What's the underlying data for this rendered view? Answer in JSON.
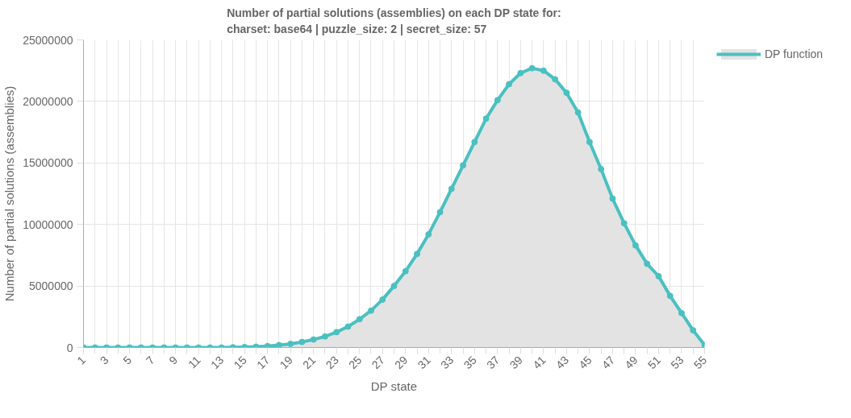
{
  "chart_data": {
    "type": "area",
    "title": "Number of partial solutions (assemblies) on each DP state for:\ncharset: base64 | puzzle_size: 2 | secret_size: 57",
    "xlabel": "DP state",
    "ylabel": "Number of partial solutions (assemblies)",
    "x": [
      1,
      2,
      3,
      4,
      5,
      6,
      7,
      8,
      9,
      10,
      11,
      12,
      13,
      14,
      15,
      16,
      17,
      18,
      19,
      20,
      21,
      22,
      23,
      24,
      25,
      26,
      27,
      28,
      29,
      30,
      31,
      32,
      33,
      34,
      35,
      36,
      37,
      38,
      39,
      40,
      41,
      42,
      43,
      44,
      45,
      46,
      47,
      48,
      49,
      50,
      51,
      52,
      53,
      54,
      55
    ],
    "series": [
      {
        "name": "DP function",
        "color": "#4bc0c0",
        "values": [
          0,
          0,
          0,
          0,
          0,
          0,
          0,
          0,
          0,
          0,
          0,
          0,
          0,
          20000,
          40000,
          70000,
          120000,
          200000,
          300000,
          450000,
          650000,
          900000,
          1250000,
          1700000,
          2300000,
          3000000,
          3900000,
          5000000,
          6200000,
          7600000,
          9200000,
          11000000,
          12900000,
          14800000,
          16700000,
          18600000,
          20100000,
          21400000,
          22300000,
          22700000,
          22500000,
          21800000,
          20700000,
          19100000,
          16700000,
          14500000,
          12100000,
          10100000,
          8300000,
          6800000,
          5800000,
          4200000,
          2800000,
          1400000,
          200000
        ]
      }
    ],
    "xlim": [
      1,
      55
    ],
    "xticks": [
      1,
      {
        "value": 2,
        "label": null
      },
      3,
      {
        "value": 4,
        "label": null
      },
      5,
      {
        "value": 6,
        "label": null
      },
      7,
      {
        "value": 8,
        "label": null
      },
      9,
      {
        "value": 10,
        "label": null
      },
      11,
      {
        "value": 12,
        "label": null
      },
      13,
      {
        "value": 14,
        "label": null
      },
      15,
      {
        "value": 16,
        "label": null
      },
      17,
      {
        "value": 18,
        "label": null
      },
      19,
      {
        "value": 20,
        "label": null
      },
      21,
      {
        "value": 22,
        "label": null
      },
      23,
      {
        "value": 24,
        "label": null
      },
      25,
      {
        "value": 26,
        "label": null
      },
      27,
      {
        "value": 28,
        "label": null
      },
      29,
      {
        "value": 30,
        "label": null
      },
      31,
      {
        "value": 32,
        "label": null
      },
      33,
      {
        "value": 34,
        "label": null
      },
      35,
      {
        "value": 36,
        "label": null
      },
      37,
      {
        "value": 38,
        "label": null
      },
      39,
      {
        "value": 40,
        "label": null
      },
      41,
      {
        "value": 42,
        "label": null
      },
      43,
      {
        "value": 44,
        "label": null
      },
      45,
      {
        "value": 46,
        "label": null
      },
      47,
      {
        "value": 48,
        "label": null
      },
      49,
      {
        "value": 50,
        "label": null
      },
      51,
      {
        "value": 52,
        "label": null
      },
      53,
      {
        "value": 54,
        "label": null
      },
      55
    ],
    "ylim": [
      0,
      25000000
    ],
    "yticks": [
      0,
      5000000,
      10000000,
      15000000,
      20000000,
      25000000
    ],
    "grid": true,
    "legend": "top right",
    "marker": "circle",
    "line_style": "solid"
  }
}
